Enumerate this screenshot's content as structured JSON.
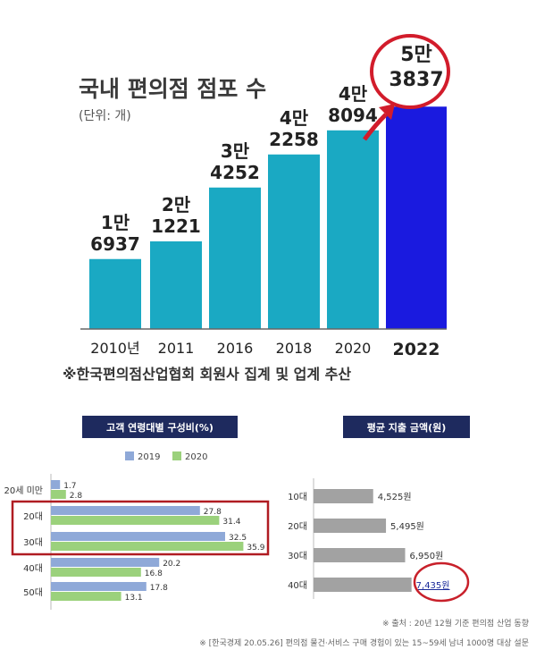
{
  "top_chart": {
    "title": "국내 편의점 점포 수",
    "unit": "(단위: 개)",
    "footnote": "※한국편의점산업협회 회원사 집계 및 업계 추산",
    "labels": [
      [
        "1만",
        "6937"
      ],
      [
        "2만",
        "1221"
      ],
      [
        "3만",
        "4252"
      ],
      [
        "4만",
        "2258"
      ],
      [
        "4만",
        "8094"
      ],
      [
        "5만",
        "3837"
      ]
    ],
    "colors": {
      "bar": "#1aa9c3",
      "highlight": "#1a1adf",
      "circle": "#d21c2b"
    }
  },
  "age_chart": {
    "header": "고객 연령대별 구성비(%)",
    "legend": [
      "2019",
      "2020"
    ],
    "colors": {
      "s2019": "#8fa9d8",
      "s2020": "#9bd17c",
      "box": "#b01c22"
    }
  },
  "spend_chart": {
    "header": "평균 지출 금액(원)",
    "value_labels": [
      "4,525원",
      "5,495원",
      "6,950원",
      "7,435원"
    ],
    "colors": {
      "bar": "#a2a2a2",
      "circle": "#c8202a"
    }
  },
  "footer": {
    "source1": "※ 출처 : 20년 12월 기준 편의점 산업 동향",
    "source2": "※ [한국경제 20.05.26] 편의점 물건·서비스 구매 경험이 있는 15~59세 남녀 1000명 대상 설문"
  },
  "chart_data": [
    {
      "type": "bar",
      "title": "국내 편의점 점포 수",
      "subtitle": "(단위: 개)",
      "categories": [
        "2010년",
        "2011",
        "2016",
        "2018",
        "2020",
        "2022"
      ],
      "values": [
        16937,
        21221,
        34252,
        42258,
        48094,
        53837
      ],
      "ylim": [
        0,
        60000
      ],
      "grid": false
    },
    {
      "type": "bar",
      "orientation": "horizontal",
      "title": "고객 연령대별 구성비(%)",
      "categories": [
        "20세 미만",
        "20대",
        "30대",
        "40대",
        "50대"
      ],
      "series": [
        {
          "name": "2019",
          "values": [
            1.7,
            27.8,
            32.5,
            20.2,
            17.8
          ]
        },
        {
          "name": "2020",
          "values": [
            2.8,
            31.4,
            35.9,
            16.8,
            13.1
          ]
        }
      ],
      "xlim": [
        0,
        40
      ],
      "legend": "top"
    },
    {
      "type": "bar",
      "orientation": "horizontal",
      "title": "평균 지출 금액(원)",
      "categories": [
        "10대",
        "20대",
        "30대",
        "40대"
      ],
      "values": [
        4525,
        5495,
        6950,
        7435
      ],
      "xlim": [
        0,
        8000
      ]
    }
  ]
}
